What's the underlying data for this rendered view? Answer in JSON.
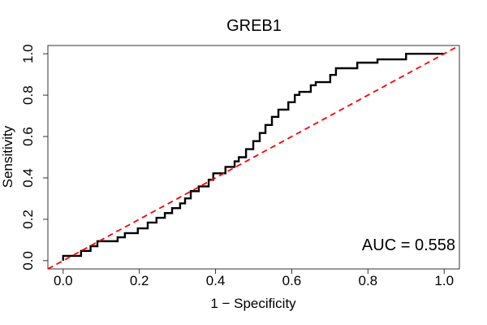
{
  "title": "GREB1",
  "annotation": "AUC = 0.558",
  "chart_data": {
    "type": "line",
    "subtype": "roc-step-curve",
    "title": "GREB1",
    "xlabel": "1 − Specificity",
    "ylabel": "Sensitivity",
    "xlim": [
      -0.04,
      1.04
    ],
    "ylim": [
      -0.04,
      1.04
    ],
    "grid": false,
    "legend": "none",
    "x_ticks": [
      0.0,
      0.2,
      0.4,
      0.6,
      0.8,
      1.0
    ],
    "x_tick_labels": [
      "0.0",
      "0.2",
      "0.4",
      "0.6",
      "0.8",
      "1.0"
    ],
    "y_ticks": [
      0.0,
      0.2,
      0.4,
      0.6,
      0.8,
      1.0
    ],
    "y_tick_labels": [
      "0.0",
      "0.2",
      "0.4",
      "0.6",
      "0.8",
      "1.0"
    ],
    "auc": 0.558,
    "annotation": "AUC = 0.558",
    "series": [
      {
        "name": "ROC curve",
        "style": "step",
        "color": "#000000",
        "line_width": 2.4,
        "start": [
          0.0,
          0.0
        ],
        "end": [
          1.0,
          1.0
        ],
        "step_knots": [
          [
            0.0,
            0.023
          ],
          [
            0.047,
            0.047
          ],
          [
            0.072,
            0.07
          ],
          [
            0.09,
            0.094
          ],
          [
            0.143,
            0.113
          ],
          [
            0.162,
            0.133
          ],
          [
            0.196,
            0.156
          ],
          [
            0.222,
            0.184
          ],
          [
            0.245,
            0.207
          ],
          [
            0.267,
            0.23
          ],
          [
            0.286,
            0.254
          ],
          [
            0.307,
            0.277
          ],
          [
            0.32,
            0.301
          ],
          [
            0.335,
            0.336
          ],
          [
            0.356,
            0.359
          ],
          [
            0.382,
            0.391
          ],
          [
            0.394,
            0.422
          ],
          [
            0.426,
            0.453
          ],
          [
            0.45,
            0.48
          ],
          [
            0.461,
            0.5
          ],
          [
            0.48,
            0.539
          ],
          [
            0.499,
            0.578
          ],
          [
            0.516,
            0.617
          ],
          [
            0.531,
            0.656
          ],
          [
            0.548,
            0.695
          ],
          [
            0.565,
            0.73
          ],
          [
            0.591,
            0.766
          ],
          [
            0.608,
            0.801
          ],
          [
            0.62,
            0.816
          ],
          [
            0.65,
            0.848
          ],
          [
            0.663,
            0.863
          ],
          [
            0.701,
            0.898
          ],
          [
            0.716,
            0.93
          ],
          [
            0.772,
            0.957
          ],
          [
            0.825,
            0.973
          ],
          [
            0.9,
            1.0
          ]
        ]
      },
      {
        "name": "Chance diagonal",
        "style": "dashed",
        "color": "#FF0000",
        "line_width": 1.8,
        "points": [
          [
            -0.04,
            -0.04
          ],
          [
            1.04,
            1.04
          ]
        ]
      }
    ]
  }
}
